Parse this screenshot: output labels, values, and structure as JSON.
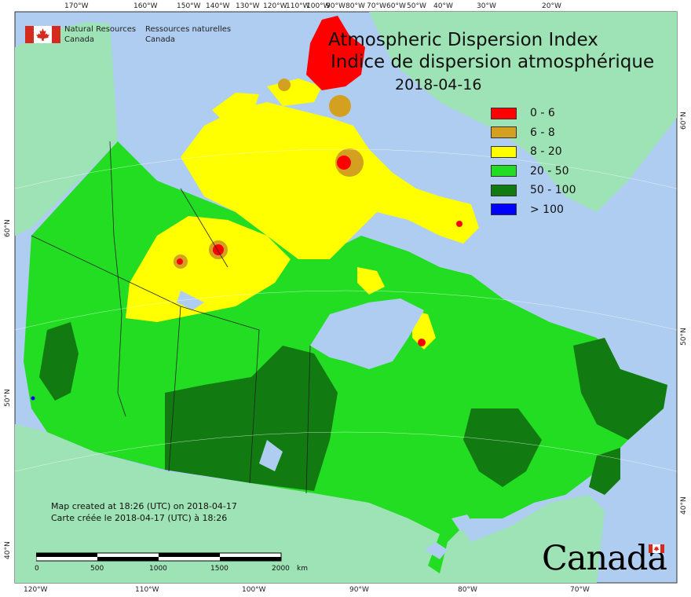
{
  "title": {
    "en": "Atmospheric Dispersion Index",
    "fr": "Indice de dispersion atmosphérique",
    "date": "2018-04-16"
  },
  "agency": {
    "en_line1": "Natural Resources",
    "en_line2": "Canada",
    "fr_line1": "Ressources naturelles",
    "fr_line2": "Canada"
  },
  "legend": [
    {
      "label": "0 - 6",
      "color": "#ff0000"
    },
    {
      "label": "6 - 8",
      "color": "#d4a020"
    },
    {
      "label": "8 - 20",
      "color": "#ffff00"
    },
    {
      "label": "20 - 50",
      "color": "#22dd22"
    },
    {
      "label": "50 - 100",
      "color": "#117a11"
    },
    {
      "label": "> 100",
      "color": "#0000ff"
    }
  ],
  "colors": {
    "ocean": "#aecdf0",
    "land_outside": "#9ee3b5",
    "border_lines": "#222222"
  },
  "graticule": {
    "top_labels": [
      "170°W",
      "160°W",
      "150°W",
      "140°W",
      "130°W",
      "120°W",
      "110°W",
      "100°W",
      "90°W",
      "80°W",
      "70°W",
      "60°W",
      "50°W",
      "40°W",
      "30°W",
      "20°W"
    ],
    "bottom_labels": [
      "120°W",
      "110°W",
      "100°W",
      "90°W",
      "80°W",
      "70°W"
    ],
    "left_labels": [
      "60°N",
      "50°N",
      "40°N"
    ],
    "right_labels": [
      "60°N",
      "50°N",
      "40°N"
    ]
  },
  "credit": {
    "line1": "Map created at 18:26 (UTC) on 2018-04-17",
    "line2": "Carte créée le 2018-04-17 (UTC) à 18:26"
  },
  "scale_bar": {
    "ticks": [
      "0",
      "500",
      "1000",
      "1500",
      "2000"
    ],
    "unit": "km"
  },
  "wordmark": "Canada"
}
